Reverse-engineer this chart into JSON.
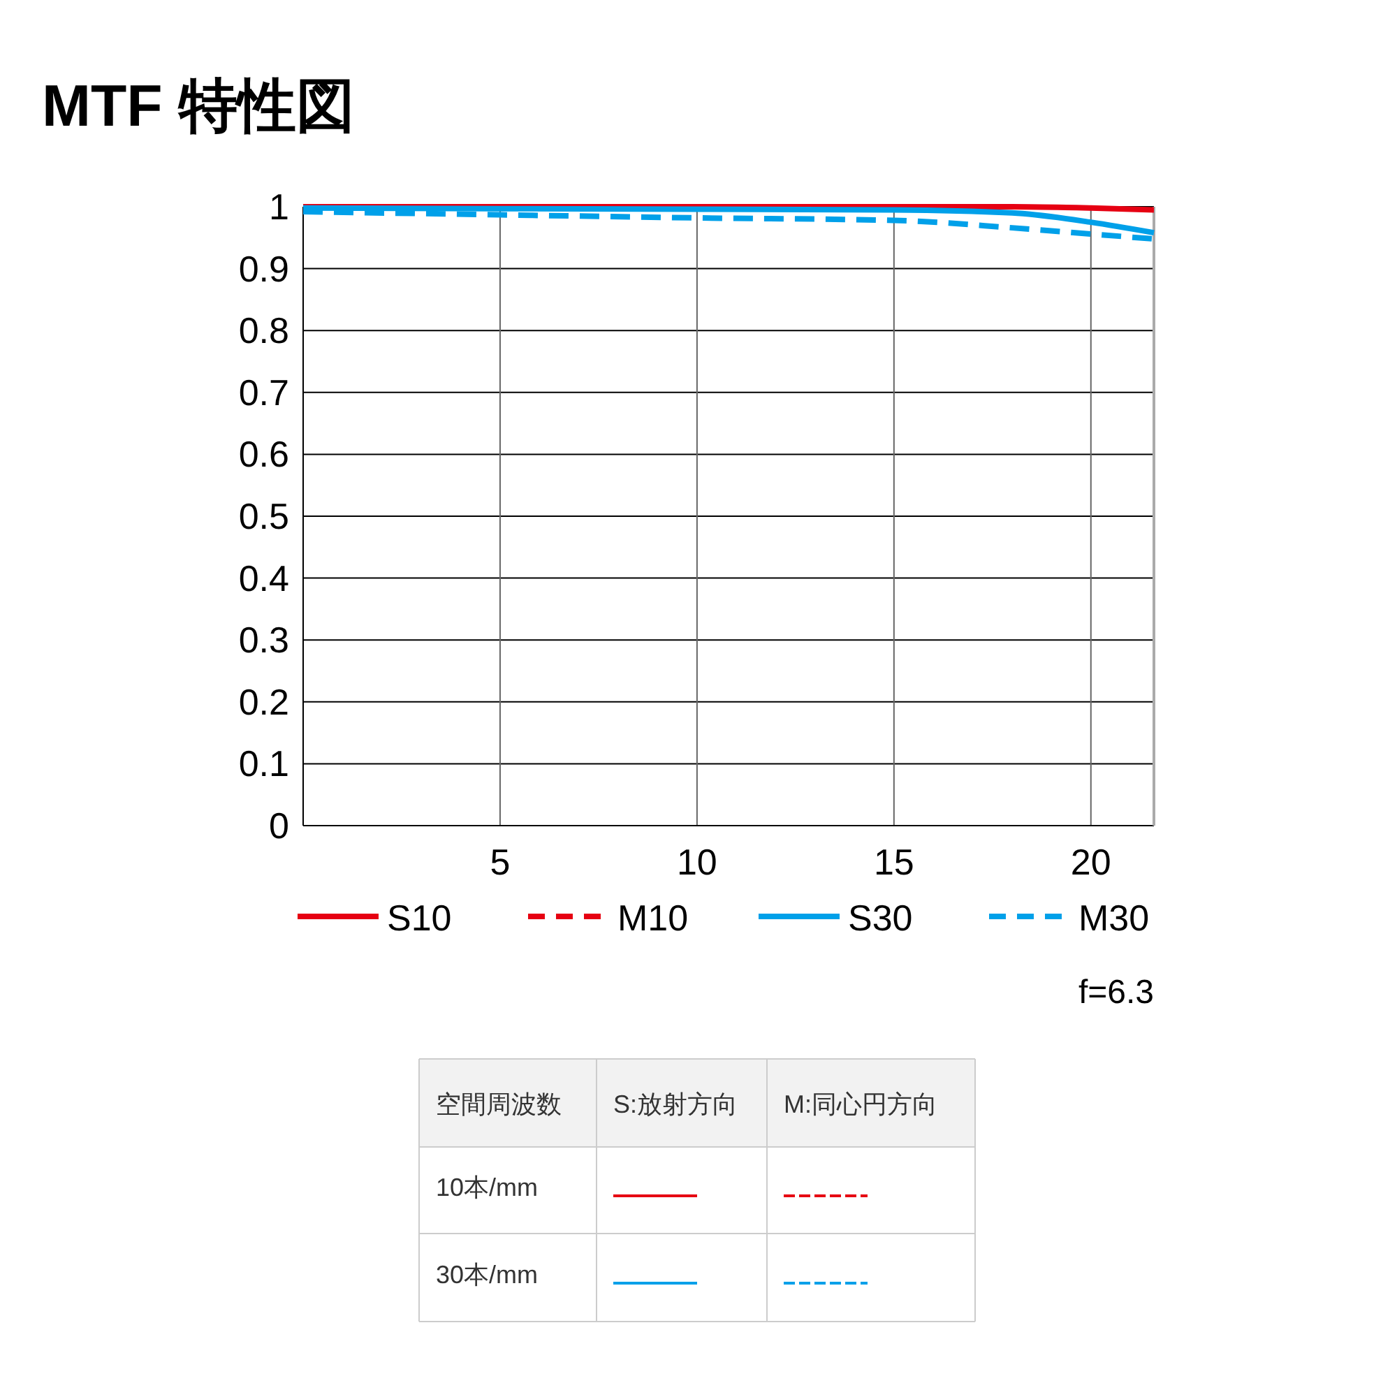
{
  "chart_data": {
    "type": "line",
    "title": "MTF 特性図",
    "x": [
      0,
      5,
      10,
      15,
      18,
      20,
      21.6
    ],
    "xlim": [
      0,
      21.6
    ],
    "xticks": [
      5,
      10,
      15,
      20
    ],
    "ylim": [
      0,
      1
    ],
    "yticks": [
      0,
      0.1,
      0.2,
      0.3,
      0.4,
      0.5,
      0.6,
      0.7,
      0.8,
      0.9,
      1
    ],
    "grid": true,
    "legend": "bottom",
    "series": [
      {
        "name": "S10",
        "color": "#e60012",
        "line_style": "solid",
        "values": [
          1,
          1,
          1,
          1,
          1,
          0.998,
          0.995
        ]
      },
      {
        "name": "M10",
        "color": "#e60012",
        "line_style": "dashed",
        "values": [
          null,
          null,
          null,
          null,
          null,
          null,
          null
        ]
      },
      {
        "name": "S30",
        "color": "#00a0e9",
        "line_style": "solid",
        "values": [
          0.998,
          0.997,
          0.996,
          0.995,
          0.99,
          0.975,
          0.958
        ]
      },
      {
        "name": "M30",
        "color": "#00a0e9",
        "line_style": "dashed",
        "values": [
          0.992,
          0.987,
          0.982,
          0.978,
          0.966,
          0.956,
          0.948
        ]
      }
    ],
    "annotations": [
      "f=6.3",
      "空間周波数",
      "S:放射方向",
      "M:同心円方向",
      "10本/mm",
      "30本/mm"
    ]
  }
}
